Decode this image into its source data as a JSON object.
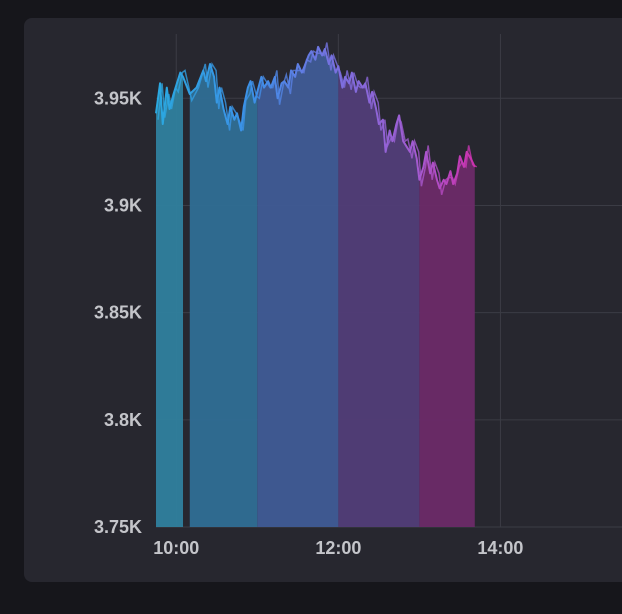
{
  "chart_data": {
    "type": "area",
    "title": "",
    "xlabel": "",
    "ylabel": "",
    "xlim": [
      "09:45",
      "15:30"
    ],
    "ylim": [
      3750,
      3980
    ],
    "grid": true,
    "legend": "none",
    "y_ticks": [
      {
        "value": 3950,
        "label": "3.95K"
      },
      {
        "value": 3900,
        "label": "3.9K"
      },
      {
        "value": 3850,
        "label": "3.85K"
      },
      {
        "value": 3800,
        "label": "3.8K"
      },
      {
        "value": 3750,
        "label": "3.75K"
      }
    ],
    "x_ticks": [
      {
        "value": "10:00",
        "label": "10:00"
      },
      {
        "value": "12:00",
        "label": "12:00"
      },
      {
        "value": "14:00",
        "label": "14:00"
      }
    ],
    "gradient_colors": [
      "#2aa8e0",
      "#3d8fe8",
      "#7a6fe0",
      "#a55ad0",
      "#d22aa8"
    ],
    "series": [
      {
        "fill_bands": [
          {
            "start": "09:45",
            "end": "10:05",
            "color": "#2f7f9e"
          },
          {
            "start": "10:10",
            "end": "11:00",
            "color": "#2f6e95"
          },
          {
            "start": "11:00",
            "end": "12:00",
            "color": "#3f5b96"
          },
          {
            "start": "12:00",
            "end": "13:00",
            "color": "#513d78"
          },
          {
            "start": "13:00",
            "end": "13:41",
            "color": "#6b2a68"
          }
        ],
        "x": [
          "09:45",
          "09:48",
          "09:50",
          "09:53",
          "09:55",
          "09:58",
          "10:00",
          "10:03",
          "10:05",
          "10:10",
          "10:15",
          "10:20",
          "10:22",
          "10:25",
          "10:28",
          "10:30",
          "10:32",
          "10:35",
          "10:38",
          "10:40",
          "10:43",
          "10:45",
          "10:48",
          "10:50",
          "10:53",
          "10:55",
          "10:58",
          "11:00",
          "11:03",
          "11:05",
          "11:08",
          "11:10",
          "11:13",
          "11:15",
          "11:18",
          "11:20",
          "11:23",
          "11:25",
          "11:28",
          "11:30",
          "11:33",
          "11:35",
          "11:38",
          "11:40",
          "11:43",
          "11:45",
          "11:48",
          "11:50",
          "11:53",
          "11:55",
          "11:58",
          "12:00",
          "12:03",
          "12:05",
          "12:08",
          "12:10",
          "12:13",
          "12:15",
          "12:18",
          "12:20",
          "12:23",
          "12:25",
          "12:28",
          "12:30",
          "12:33",
          "12:35",
          "12:38",
          "12:40",
          "12:43",
          "12:45",
          "12:48",
          "12:50",
          "12:53",
          "12:55",
          "12:58",
          "13:00",
          "13:03",
          "13:05",
          "13:08",
          "13:10",
          "13:13",
          "13:15",
          "13:18",
          "13:20",
          "13:23",
          "13:25",
          "13:28",
          "13:30",
          "13:33",
          "13:35",
          "13:38",
          "13:41"
        ],
        "y": [
          3943,
          3957,
          3938,
          3955,
          3945,
          3952,
          3956,
          3962,
          3960,
          3952,
          3955,
          3963,
          3958,
          3966,
          3960,
          3948,
          3955,
          3945,
          3938,
          3946,
          3940,
          3943,
          3935,
          3946,
          3955,
          3958,
          3948,
          3953,
          3960,
          3955,
          3958,
          3955,
          3960,
          3950,
          3957,
          3958,
          3955,
          3963,
          3960,
          3966,
          3962,
          3965,
          3970,
          3972,
          3968,
          3974,
          3970,
          3973,
          3966,
          3970,
          3962,
          3965,
          3955,
          3960,
          3957,
          3962,
          3953,
          3958,
          3955,
          3957,
          3948,
          3953,
          3945,
          3938,
          3940,
          3925,
          3935,
          3930,
          3938,
          3942,
          3930,
          3928,
          3925,
          3930,
          3922,
          3912,
          3918,
          3925,
          3915,
          3920,
          3912,
          3908,
          3912,
          3910,
          3916,
          3910,
          3915,
          3923,
          3918,
          3925,
          3922,
          3918
        ]
      }
    ]
  }
}
